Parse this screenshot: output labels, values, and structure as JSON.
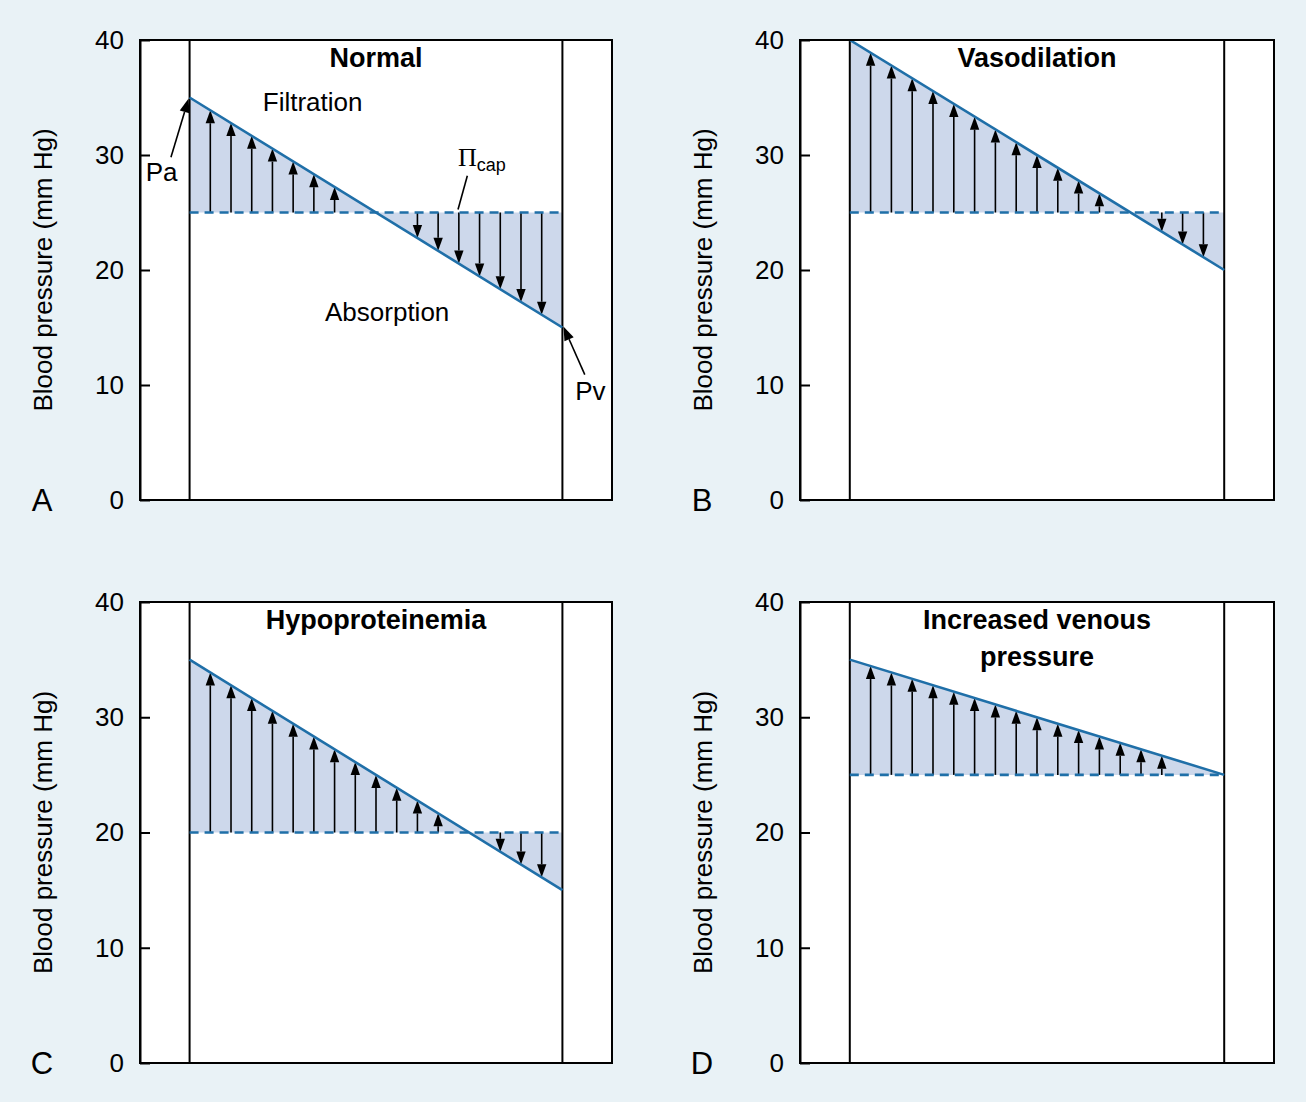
{
  "chart_data": [
    {
      "type": "line",
      "title": "Normal",
      "panel_label": "A",
      "ylabel": "Blood pressure (mm Hg)",
      "x": [
        0,
        1
      ],
      "xlim": [
        -0.133,
        1.133
      ],
      "ylim": [
        0,
        40
      ],
      "yticks": [
        0,
        10,
        20,
        30,
        40
      ],
      "tick_labels": "y",
      "series": [
        {
          "color": "#1f6fa8",
          "line_style": "solid",
          "values": [
            35,
            15
          ]
        },
        {
          "color": "#1f6fa8",
          "line_style": "dashed",
          "values": [
            25,
            25
          ]
        }
      ],
      "annotations": {
        "filtration": "Filtration",
        "absorption": "Absorption",
        "arterial_end": "Pa",
        "venous_end": "Pv",
        "oncotic": "Πcap"
      }
    },
    {
      "type": "line",
      "title": "Vasodilation",
      "panel_label": "B",
      "ylabel": "Blood pressure (mm Hg)",
      "x": [
        0,
        1
      ],
      "xlim": [
        -0.133,
        1.133
      ],
      "ylim": [
        0,
        40
      ],
      "yticks": [
        0,
        10,
        20,
        30,
        40
      ],
      "tick_labels": "y",
      "series": [
        {
          "color": "#1f6fa8",
          "line_style": "solid",
          "values": [
            40,
            20
          ]
        },
        {
          "color": "#1f6fa8",
          "line_style": "dashed",
          "values": [
            25,
            25
          ]
        }
      ]
    },
    {
      "type": "line",
      "title": "Hypoproteinemia",
      "panel_label": "C",
      "ylabel": "Blood pressure (mm Hg)",
      "x": [
        0,
        1
      ],
      "xlim": [
        -0.133,
        1.133
      ],
      "ylim": [
        0,
        40
      ],
      "yticks": [
        0,
        10,
        20,
        30,
        40
      ],
      "tick_labels": "y",
      "series": [
        {
          "color": "#1f6fa8",
          "line_style": "solid",
          "values": [
            35,
            15
          ]
        },
        {
          "color": "#1f6fa8",
          "line_style": "dashed",
          "values": [
            20,
            20
          ]
        }
      ]
    },
    {
      "type": "line",
      "title": "Increased venous pressure",
      "panel_label": "D",
      "ylabel": "Blood pressure (mm Hg)",
      "x": [
        0,
        1
      ],
      "xlim": [
        -0.133,
        1.133
      ],
      "ylim": [
        0,
        40
      ],
      "yticks": [
        0,
        10,
        20,
        30,
        40
      ],
      "tick_labels": "y",
      "series": [
        {
          "color": "#1f6fa8",
          "line_style": "solid",
          "values": [
            35,
            25
          ]
        },
        {
          "color": "#1f6fa8",
          "line_style": "dashed",
          "values": [
            25,
            25
          ]
        }
      ]
    }
  ]
}
